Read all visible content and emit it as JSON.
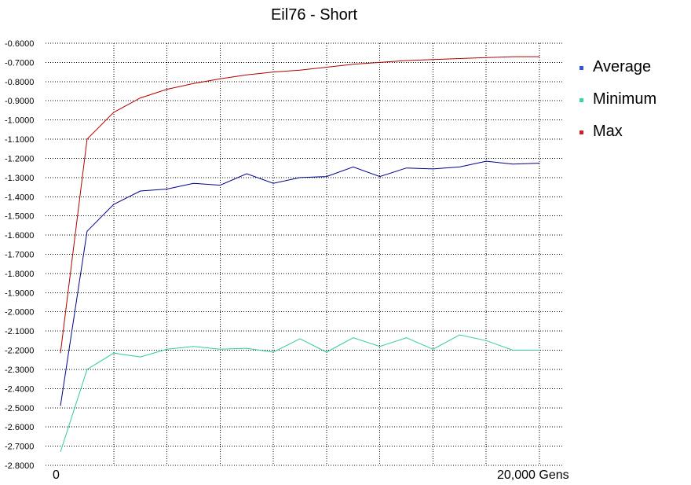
{
  "chart_data": {
    "type": "line",
    "title": "Eil76 - Short",
    "x_tick_labels": [
      "0",
      "20,000 Gens"
    ],
    "x": [
      0,
      1,
      2,
      3,
      4,
      5,
      6,
      7,
      8,
      9,
      10,
      11,
      12,
      13,
      14,
      15,
      16,
      17,
      18
    ],
    "ylim": [
      -2.8,
      -0.6
    ],
    "y_ticks": [
      "-0.6000",
      "-0.7000",
      "-0.8000",
      "-0.9000",
      "-1.0000",
      "-1.1000",
      "-1.2000",
      "-1.3000",
      "-1.4000",
      "-1.5000",
      "-1.6000",
      "-1.7000",
      "-1.8000",
      "-1.9000",
      "-2.0000",
      "-2.1000",
      "-2.2000",
      "-2.3000",
      "-2.4000",
      "-2.5000",
      "-2.6000",
      "-2.7000",
      "-2.8000"
    ],
    "grid": true,
    "legend_position": "right",
    "series": [
      {
        "name": "Average",
        "color": "#00008B",
        "values": [
          -2.49,
          -1.58,
          -1.44,
          -1.37,
          -1.36,
          -1.33,
          -1.34,
          -1.28,
          -1.33,
          -1.3,
          -1.295,
          -1.245,
          -1.295,
          -1.25,
          -1.255,
          -1.245,
          -1.215,
          -1.23,
          -1.225
        ]
      },
      {
        "name": "Minimum",
        "color": "#33CC99",
        "values": [
          -2.73,
          -2.3,
          -2.215,
          -2.235,
          -2.195,
          -2.18,
          -2.195,
          -2.19,
          -2.21,
          -2.14,
          -2.21,
          -2.135,
          -2.18,
          -2.135,
          -2.195,
          -2.12,
          -2.15,
          -2.2,
          -2.2
        ]
      },
      {
        "name": "Max",
        "color": "#B00000",
        "values": [
          -2.215,
          -1.1,
          -0.96,
          -0.885,
          -0.84,
          -0.81,
          -0.785,
          -0.765,
          -0.75,
          -0.74,
          -0.725,
          -0.71,
          -0.7,
          -0.69,
          -0.685,
          -0.68,
          -0.675,
          -0.67,
          -0.67
        ]
      }
    ],
    "legend_colors": {
      "Average": "#3355DD",
      "Minimum": "#33DD99",
      "Max": "#CC2222"
    }
  }
}
